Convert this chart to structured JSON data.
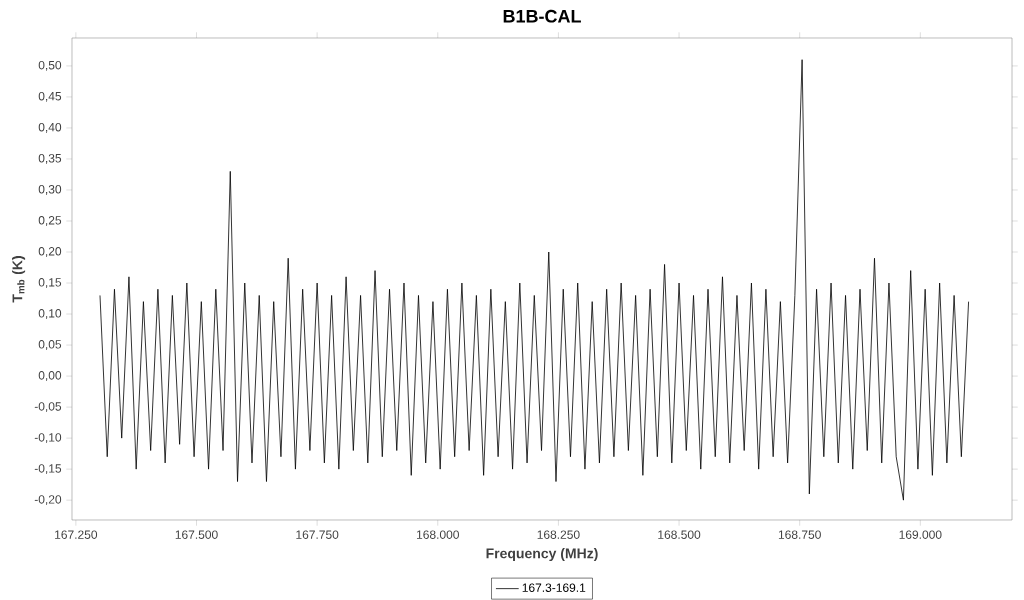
{
  "chart_data": {
    "type": "line",
    "title": "B1B-CAL",
    "xlabel": "Frequency (MHz)",
    "ylabel": "T$_{mb}$ (K)",
    "x": [
      167300,
      167315,
      167330,
      167345,
      167360,
      167375,
      167390,
      167405,
      167420,
      167435,
      167450,
      167465,
      167480,
      167495,
      167510,
      167525,
      167540,
      167555,
      167570,
      167585,
      167600,
      167615,
      167630,
      167645,
      167660,
      167675,
      167690,
      167705,
      167720,
      167735,
      167750,
      167765,
      167780,
      167795,
      167810,
      167825,
      167840,
      167855,
      167870,
      167885,
      167900,
      167915,
      167930,
      167945,
      167960,
      167975,
      167990,
      168005,
      168020,
      168035,
      168050,
      168065,
      168080,
      168095,
      168110,
      168125,
      168140,
      168155,
      168170,
      168185,
      168200,
      168215,
      168230,
      168245,
      168260,
      168275,
      168290,
      168305,
      168320,
      168335,
      168350,
      168365,
      168380,
      168395,
      168410,
      168425,
      168440,
      168455,
      168470,
      168485,
      168500,
      168515,
      168530,
      168545,
      168560,
      168575,
      168590,
      168605,
      168620,
      168635,
      168650,
      168665,
      168680,
      168695,
      168710,
      168725,
      168740,
      168755,
      168770,
      168785,
      168800,
      168815,
      168830,
      168845,
      168860,
      168875,
      168890,
      168905,
      168920,
      168935,
      168950,
      168965,
      168980,
      168995,
      169010,
      169025,
      169040,
      169055,
      169070,
      169085,
      169100
    ],
    "series": [
      {
        "name": "167.3-169.1",
        "color": "#000000",
        "values": [
          0.13,
          -0.13,
          0.14,
          -0.1,
          0.16,
          -0.15,
          0.12,
          -0.12,
          0.14,
          -0.14,
          0.13,
          -0.11,
          0.15,
          -0.13,
          0.12,
          -0.15,
          0.14,
          -0.12,
          0.33,
          -0.17,
          0.15,
          -0.14,
          0.13,
          -0.17,
          0.12,
          -0.13,
          0.19,
          -0.15,
          0.14,
          -0.12,
          0.15,
          -0.14,
          0.13,
          -0.15,
          0.16,
          -0.12,
          0.13,
          -0.14,
          0.17,
          -0.13,
          0.14,
          -0.12,
          0.15,
          -0.16,
          0.13,
          -0.14,
          0.12,
          -0.15,
          0.14,
          -0.13,
          0.15,
          -0.12,
          0.13,
          -0.16,
          0.14,
          -0.13,
          0.12,
          -0.15,
          0.15,
          -0.14,
          0.13,
          -0.12,
          0.2,
          -0.17,
          0.14,
          -0.13,
          0.15,
          -0.15,
          0.12,
          -0.14,
          0.14,
          -0.13,
          0.15,
          -0.12,
          0.13,
          -0.16,
          0.14,
          -0.13,
          0.18,
          -0.14,
          0.15,
          -0.12,
          0.13,
          -0.15,
          0.14,
          -0.13,
          0.16,
          -0.14,
          0.13,
          -0.12,
          0.15,
          -0.15,
          0.14,
          -0.13,
          0.12,
          -0.14,
          0.13,
          0.51,
          -0.19,
          0.14,
          -0.13,
          0.15,
          -0.14,
          0.13,
          -0.15,
          0.14,
          -0.12,
          0.19,
          -0.14,
          0.15,
          -0.13,
          -0.2,
          0.17,
          -0.15,
          0.14,
          -0.16,
          0.15,
          -0.14,
          0.13,
          -0.13,
          0.12
        ]
      }
    ],
    "xlim": [
      167242,
      169190
    ],
    "ylim": [
      -0.232,
      0.545
    ],
    "xticks": [
      {
        "value": 167250,
        "label": "167.250"
      },
      {
        "value": 167500,
        "label": "167.500"
      },
      {
        "value": 167750,
        "label": "167.750"
      },
      {
        "value": 168000,
        "label": "168.000"
      },
      {
        "value": 168250,
        "label": "168.250"
      },
      {
        "value": 168500,
        "label": "168.500"
      },
      {
        "value": 168750,
        "label": "168.750"
      },
      {
        "value": 169000,
        "label": "169.000"
      }
    ],
    "yticks": [
      {
        "value": -0.2,
        "label": "-0,20"
      },
      {
        "value": -0.15,
        "label": "-0,15"
      },
      {
        "value": -0.1,
        "label": "-0,10"
      },
      {
        "value": -0.05,
        "label": "-0,05"
      },
      {
        "value": 0.0,
        "label": "0,00"
      },
      {
        "value": 0.05,
        "label": "0,05"
      },
      {
        "value": 0.1,
        "label": "0,10"
      },
      {
        "value": 0.15,
        "label": "0,15"
      },
      {
        "value": 0.2,
        "label": "0,20"
      },
      {
        "value": 0.25,
        "label": "0,25"
      },
      {
        "value": 0.3,
        "label": "0,30"
      },
      {
        "value": 0.35,
        "label": "0,35"
      },
      {
        "value": 0.4,
        "label": "0,40"
      },
      {
        "value": 0.45,
        "label": "0,45"
      },
      {
        "value": 0.5,
        "label": "0,50"
      }
    ],
    "legend": "bottom"
  }
}
